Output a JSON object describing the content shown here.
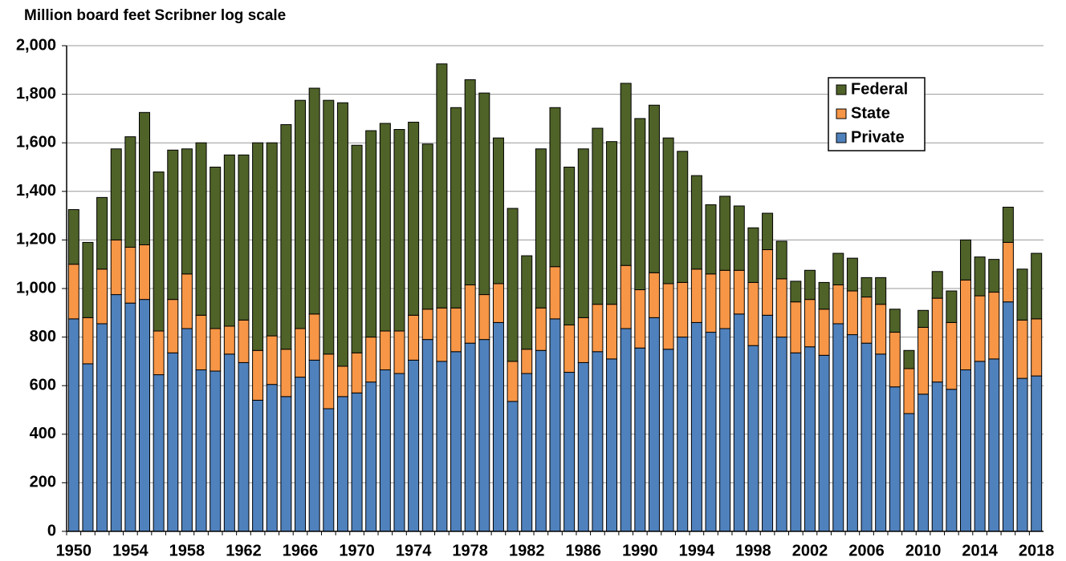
{
  "chart_data": {
    "type": "stacked_bar",
    "title": "Million board feet Scribner log scale",
    "categories": [
      "1950",
      null,
      null,
      null,
      "1954",
      null,
      null,
      null,
      "1958",
      null,
      null,
      null,
      "1962",
      null,
      null,
      null,
      "1966",
      null,
      null,
      null,
      "1970",
      null,
      null,
      null,
      "1974",
      null,
      null,
      null,
      "1978",
      null,
      null,
      null,
      "1982",
      null,
      null,
      null,
      "1986",
      null,
      null,
      null,
      "1990",
      null,
      null,
      null,
      "1994",
      null,
      null,
      null,
      "1998",
      null,
      null,
      null,
      "2002",
      null,
      null,
      null,
      "2006",
      null,
      null,
      null,
      "2010",
      null,
      null,
      null,
      "2014",
      null,
      null,
      null,
      "2018"
    ],
    "series": [
      {
        "name": "Private",
        "color": "#4f81bd",
        "values": [
          875,
          690,
          855,
          975,
          940,
          955,
          645,
          735,
          835,
          665,
          660,
          730,
          695,
          540,
          605,
          555,
          635,
          705,
          505,
          555,
          570,
          615,
          665,
          650,
          705,
          790,
          700,
          740,
          775,
          790,
          860,
          535,
          650,
          745,
          875,
          655,
          695,
          740,
          710,
          835,
          755,
          880,
          750,
          800,
          860,
          820,
          835,
          895,
          765,
          890,
          800,
          735,
          760,
          725,
          855,
          810,
          775,
          730,
          595,
          485,
          565,
          615,
          585,
          665,
          700,
          710,
          945,
          630,
          640
        ]
      },
      {
        "name": "State",
        "color": "#f79646",
        "values": [
          225,
          190,
          225,
          225,
          230,
          225,
          180,
          220,
          225,
          225,
          175,
          115,
          175,
          205,
          200,
          195,
          200,
          190,
          225,
          125,
          165,
          185,
          160,
          175,
          185,
          125,
          220,
          180,
          240,
          185,
          160,
          165,
          100,
          175,
          215,
          195,
          185,
          195,
          225,
          260,
          240,
          185,
          270,
          225,
          220,
          240,
          240,
          180,
          260,
          270,
          240,
          210,
          195,
          190,
          160,
          180,
          190,
          205,
          225,
          185,
          275,
          345,
          275,
          370,
          270,
          275,
          245,
          240,
          235
        ]
      },
      {
        "name": "Federal",
        "color": "#4f6228",
        "values": [
          225,
          310,
          295,
          375,
          455,
          545,
          655,
          615,
          515,
          710,
          665,
          705,
          680,
          855,
          795,
          925,
          940,
          930,
          1045,
          1085,
          855,
          850,
          855,
          830,
          795,
          680,
          1005,
          825,
          845,
          830,
          600,
          630,
          385,
          655,
          655,
          650,
          695,
          725,
          670,
          750,
          705,
          690,
          600,
          540,
          385,
          285,
          305,
          265,
          225,
          150,
          155,
          85,
          120,
          110,
          130,
          135,
          80,
          110,
          95,
          75,
          70,
          110,
          130,
          165,
          160,
          135,
          145,
          210,
          270
        ]
      }
    ],
    "ylim": [
      0,
      2000
    ],
    "yticks": [
      0,
      200,
      400,
      600,
      800,
      {
        "value": 1000,
        "label": "1,000"
      },
      {
        "value": 1200,
        "label": "1,200"
      },
      {
        "value": 1400,
        "label": "1,400"
      },
      {
        "value": 1600,
        "label": "1,600"
      },
      {
        "value": 1800,
        "label": "1,800"
      },
      {
        "value": 2000,
        "label": "2,000"
      }
    ],
    "grid": true,
    "legend": "upper right"
  }
}
